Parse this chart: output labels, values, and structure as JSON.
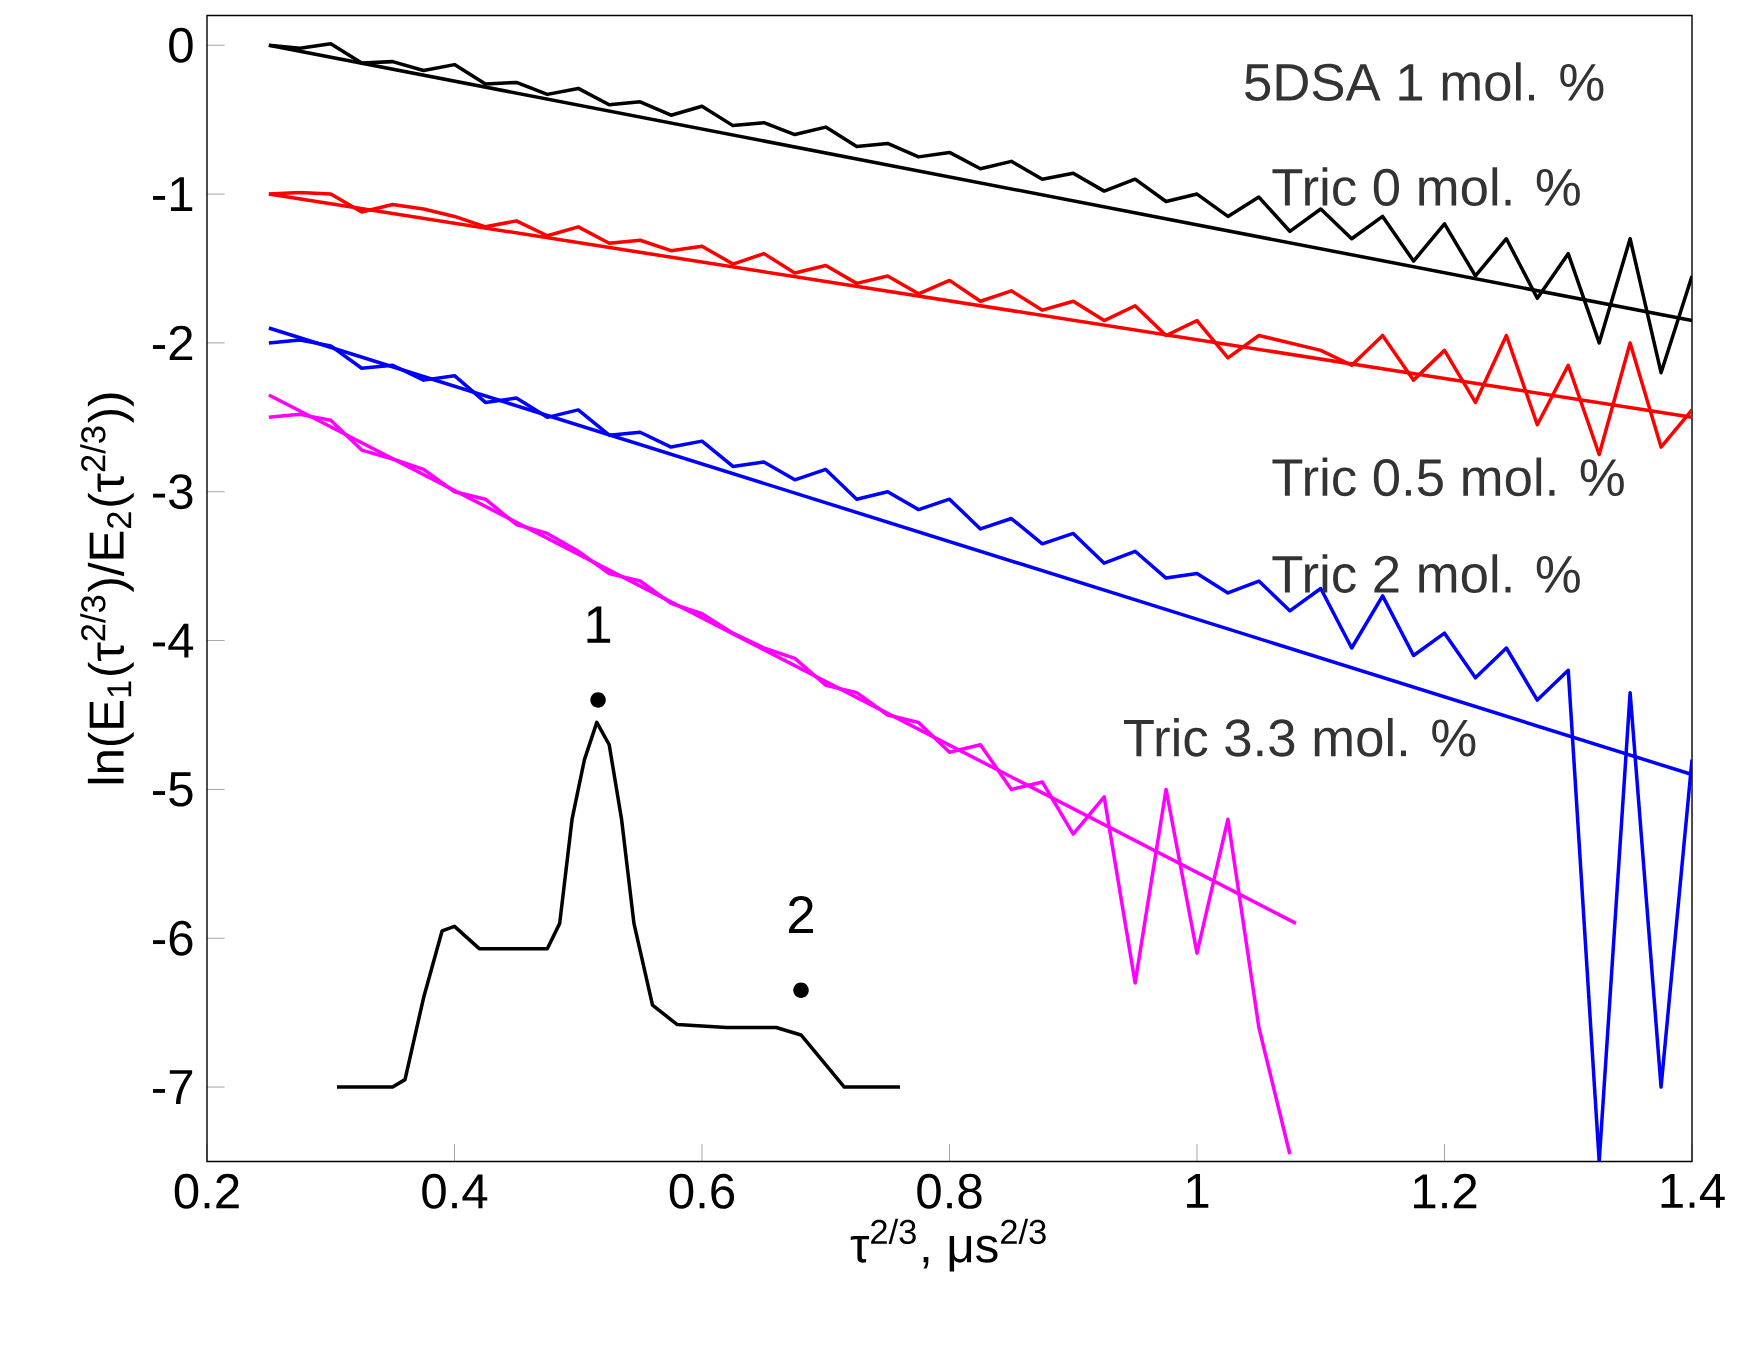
{
  "chart_data": {
    "type": "line",
    "xlabel": "τ$^{2/3}$, μs$^{2/3}$",
    "ylabel": "ln(E$_{1}$(τ$^{2/3}$)/E$_{2}$(τ$^{2/3}$))",
    "xlim": [
      0.2,
      1.4
    ],
    "ylim": [
      -7.5,
      0.2
    ],
    "xticks": [
      0.2,
      0.4,
      0.6,
      0.8,
      1,
      1.2,
      1.4
    ],
    "yticks": [
      0,
      -1,
      -2,
      -3,
      -4,
      -5,
      -6,
      -7
    ],
    "annotations": [
      "5DSA 1 mol. %",
      {
        "text": "1",
        "x": 0.516,
        "y": -4.4
      },
      {
        "text": "2",
        "x": 0.68,
        "y": -6.35
      }
    ],
    "series": [
      {
        "name": "Tric 0 mol. %",
        "color": "#000000",
        "x": [
          0.25,
          0.275,
          0.3,
          0.325,
          0.35,
          0.375,
          0.4,
          0.425,
          0.45,
          0.475,
          0.5,
          0.525,
          0.55,
          0.575,
          0.6,
          0.625,
          0.65,
          0.675,
          0.7,
          0.725,
          0.75,
          0.775,
          0.8,
          0.825,
          0.85,
          0.875,
          0.9,
          0.925,
          0.95,
          0.975,
          1.0,
          1.025,
          1.05,
          1.075,
          1.1,
          1.125,
          1.15,
          1.175,
          1.2,
          1.225,
          1.25,
          1.275,
          1.3,
          1.325,
          1.35,
          1.375,
          1.4
        ],
        "values": [
          0,
          -0.02,
          0.01,
          -0.12,
          -0.11,
          -0.17,
          -0.13,
          -0.26,
          -0.25,
          -0.33,
          -0.29,
          -0.4,
          -0.38,
          -0.47,
          -0.41,
          -0.54,
          -0.52,
          -0.6,
          -0.55,
          -0.68,
          -0.66,
          -0.75,
          -0.72,
          -0.83,
          -0.78,
          -0.9,
          -0.86,
          -0.98,
          -0.9,
          -1.05,
          -1.0,
          -1.15,
          -1.02,
          -1.25,
          -1.1,
          -1.3,
          -1.15,
          -1.45,
          -1.2,
          -1.55,
          -1.3,
          -1.7,
          -1.4,
          -2.0,
          -1.3,
          -2.2,
          -1.55
        ]
      },
      {
        "name": "Tric 0.5 mol. %",
        "color": "#ff0000",
        "x": [
          0.25,
          0.275,
          0.3,
          0.325,
          0.35,
          0.375,
          0.4,
          0.425,
          0.45,
          0.475,
          0.5,
          0.525,
          0.55,
          0.575,
          0.6,
          0.625,
          0.65,
          0.675,
          0.7,
          0.725,
          0.75,
          0.775,
          0.8,
          0.825,
          0.85,
          0.875,
          0.9,
          0.925,
          0.95,
          0.975,
          1.0,
          1.025,
          1.05,
          1.075,
          1.1,
          1.125,
          1.15,
          1.175,
          1.2,
          1.225,
          1.25,
          1.275,
          1.3,
          1.325,
          1.35,
          1.375,
          1.4
        ],
        "values": [
          -1.0,
          -0.99,
          -1.0,
          -1.12,
          -1.07,
          -1.1,
          -1.15,
          -1.22,
          -1.18,
          -1.28,
          -1.22,
          -1.33,
          -1.31,
          -1.38,
          -1.35,
          -1.47,
          -1.4,
          -1.53,
          -1.48,
          -1.6,
          -1.55,
          -1.67,
          -1.58,
          -1.72,
          -1.65,
          -1.78,
          -1.72,
          -1.85,
          -1.75,
          -1.95,
          -1.85,
          -2.1,
          -1.95,
          -2.0,
          -2.05,
          -2.15,
          -1.95,
          -2.25,
          -2.05,
          -2.4,
          -1.95,
          -2.55,
          -2.15,
          -2.75,
          -2.0,
          -2.7,
          -2.45
        ]
      },
      {
        "name": "Tric 2 mol. %",
        "color": "#0000ff",
        "x": [
          0.25,
          0.275,
          0.3,
          0.325,
          0.35,
          0.375,
          0.4,
          0.425,
          0.45,
          0.475,
          0.5,
          0.525,
          0.55,
          0.575,
          0.6,
          0.625,
          0.65,
          0.675,
          0.7,
          0.725,
          0.75,
          0.775,
          0.8,
          0.825,
          0.85,
          0.875,
          0.9,
          0.925,
          0.95,
          0.975,
          1.0,
          1.025,
          1.05,
          1.075,
          1.1,
          1.125,
          1.15,
          1.175,
          1.2,
          1.225,
          1.25,
          1.275,
          1.3,
          1.325,
          1.35,
          1.375,
          1.4
        ],
        "values": [
          -2.0,
          -1.98,
          -2.02,
          -2.17,
          -2.15,
          -2.25,
          -2.22,
          -2.4,
          -2.37,
          -2.5,
          -2.45,
          -2.62,
          -2.6,
          -2.7,
          -2.66,
          -2.83,
          -2.8,
          -2.92,
          -2.85,
          -3.05,
          -3.0,
          -3.12,
          -3.05,
          -3.25,
          -3.18,
          -3.35,
          -3.28,
          -3.48,
          -3.4,
          -3.58,
          -3.55,
          -3.68,
          -3.6,
          -3.8,
          -3.65,
          -4.05,
          -3.7,
          -4.1,
          -3.95,
          -4.25,
          -4.05,
          -4.4,
          -4.2,
          -7.5,
          -4.35,
          -7.0,
          -4.8
        ]
      },
      {
        "name": "Tric 3.3 mol. %",
        "color": "#ff00ff",
        "x": [
          0.25,
          0.275,
          0.3,
          0.325,
          0.35,
          0.375,
          0.4,
          0.425,
          0.45,
          0.475,
          0.5,
          0.525,
          0.55,
          0.575,
          0.6,
          0.625,
          0.65,
          0.675,
          0.7,
          0.725,
          0.75,
          0.775,
          0.8,
          0.825,
          0.85,
          0.875,
          0.9,
          0.925,
          0.95,
          0.975,
          1.0,
          1.025,
          1.05,
          1.075
        ],
        "values": [
          -2.5,
          -2.48,
          -2.52,
          -2.72,
          -2.78,
          -2.85,
          -3.0,
          -3.05,
          -3.22,
          -3.28,
          -3.4,
          -3.55,
          -3.6,
          -3.75,
          -3.82,
          -3.95,
          -4.05,
          -4.12,
          -4.3,
          -4.35,
          -4.5,
          -4.55,
          -4.75,
          -4.7,
          -5.0,
          -4.95,
          -5.3,
          -5.05,
          -6.3,
          -5.0,
          -6.1,
          -5.2,
          -6.6,
          -7.45
        ]
      },
      {
        "color": "#000000",
        "x": [
          0.25,
          1.4
        ],
        "values": [
          0,
          -1.85
        ]
      },
      {
        "color": "#ff0000",
        "x": [
          0.25,
          1.4
        ],
        "values": [
          -1.0,
          -2.5
        ]
      },
      {
        "color": "#0000ff",
        "x": [
          0.25,
          1.4
        ],
        "values": [
          -1.9,
          -4.9
        ]
      },
      {
        "color": "#ff00ff",
        "x": [
          0.25,
          1.08
        ],
        "values": [
          -2.35,
          -5.9
        ]
      },
      {
        "color": "#000000",
        "x": [
          0.305,
          0.35,
          0.36,
          0.375,
          0.39,
          0.4,
          0.42,
          0.475,
          0.485,
          0.495,
          0.505,
          0.515,
          0.525,
          0.535,
          0.545,
          0.56,
          0.58,
          0.62,
          0.66,
          0.68,
          0.7,
          0.715,
          0.76
        ],
        "values": [
          -7.0,
          -7.0,
          -6.95,
          -6.4,
          -5.95,
          -5.92,
          -6.07,
          -6.07,
          -5.9,
          -5.2,
          -4.8,
          -4.55,
          -4.7,
          -5.2,
          -5.9,
          -6.45,
          -6.58,
          -6.6,
          -6.6,
          -6.65,
          -6.85,
          -7.0,
          -7.0
        ]
      }
    ]
  }
}
